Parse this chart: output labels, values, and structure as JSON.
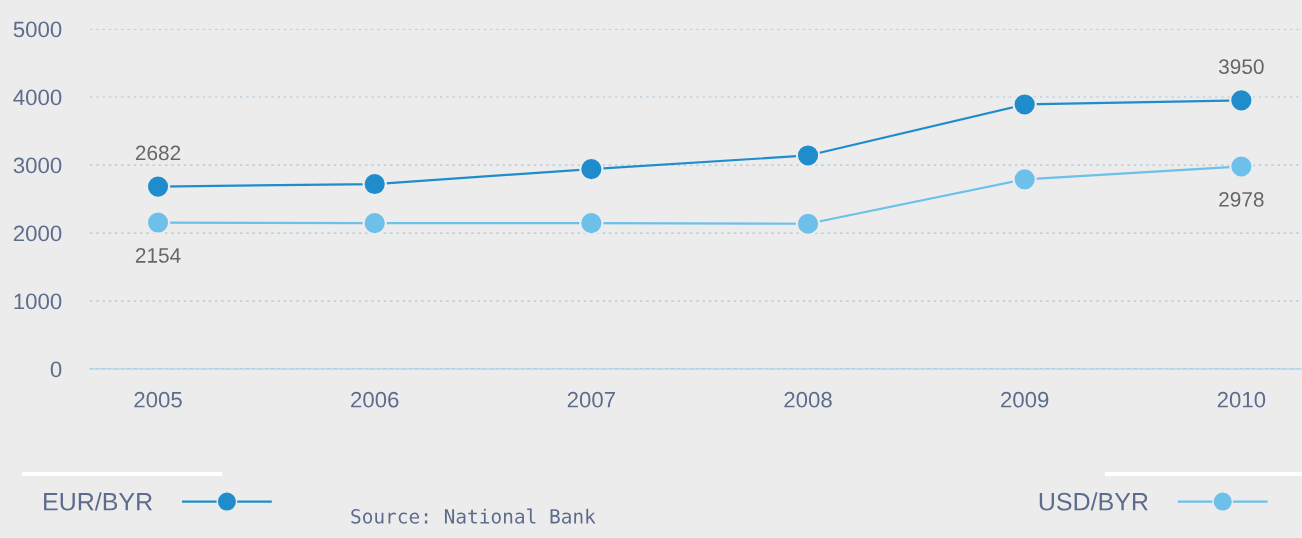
{
  "chart_data": {
    "type": "line",
    "categories": [
      "2005",
      "2006",
      "2007",
      "2008",
      "2009",
      "2010"
    ],
    "series": [
      {
        "name": "EUR/BYR",
        "color": "#1f8ccb",
        "values": [
          2682,
          2720,
          2940,
          3140,
          3890,
          3950
        ],
        "value_labels": [
          "2682",
          null,
          null,
          null,
          null,
          "3950"
        ]
      },
      {
        "name": "USD/BYR",
        "color": "#6cc0ea",
        "values": [
          2154,
          2145,
          2146,
          2136,
          2790,
          2978
        ],
        "value_labels": [
          "2154",
          null,
          null,
          null,
          null,
          "2978"
        ]
      }
    ],
    "ylim": [
      0,
      5000
    ],
    "yticks": [
      0,
      1000,
      2000,
      3000,
      4000,
      5000
    ],
    "grid": "y",
    "marker": "circle",
    "line_style": "solid",
    "legend": "bottom",
    "annotations": [
      "Source: National Bank"
    ]
  }
}
